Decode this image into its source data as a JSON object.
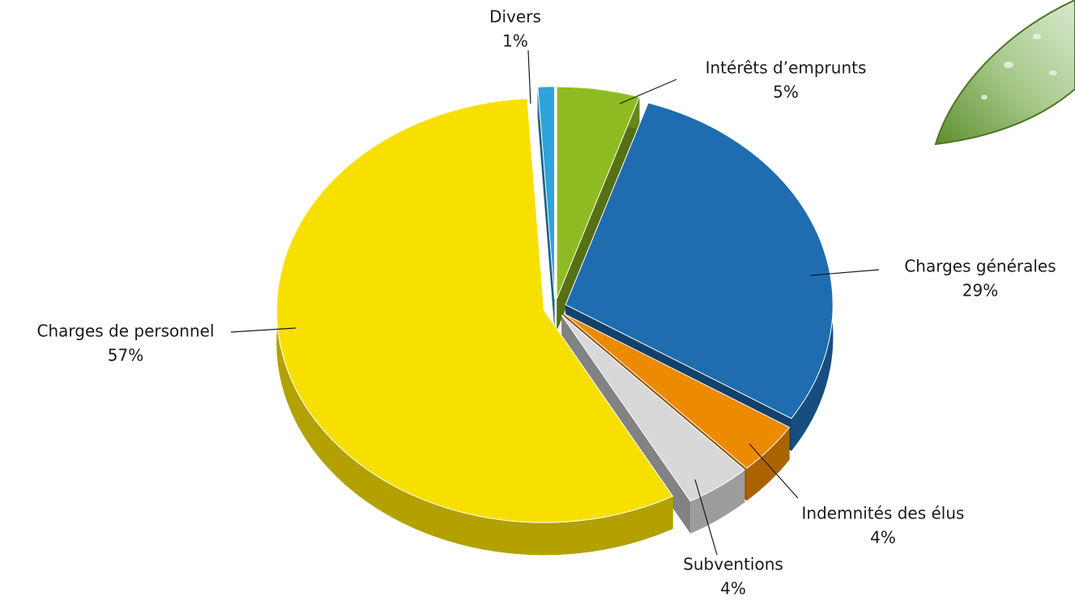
{
  "chart_data": {
    "type": "pie",
    "categories": [
      "Intérêts d’emprunts",
      "Charges générales",
      "Indemnités des élus",
      "Subventions",
      "Charges de personnel",
      "Divers"
    ],
    "values": [
      5,
      29,
      4,
      4,
      57,
      1
    ],
    "value_labels": [
      "5%",
      "29%",
      "4%",
      "4%",
      "57%",
      "1%"
    ],
    "colors": [
      "#8fbb22",
      "#1f6db0",
      "#ec8a00",
      "#d8d8d8",
      "#f7e000",
      "#2ea3dc"
    ]
  }
}
